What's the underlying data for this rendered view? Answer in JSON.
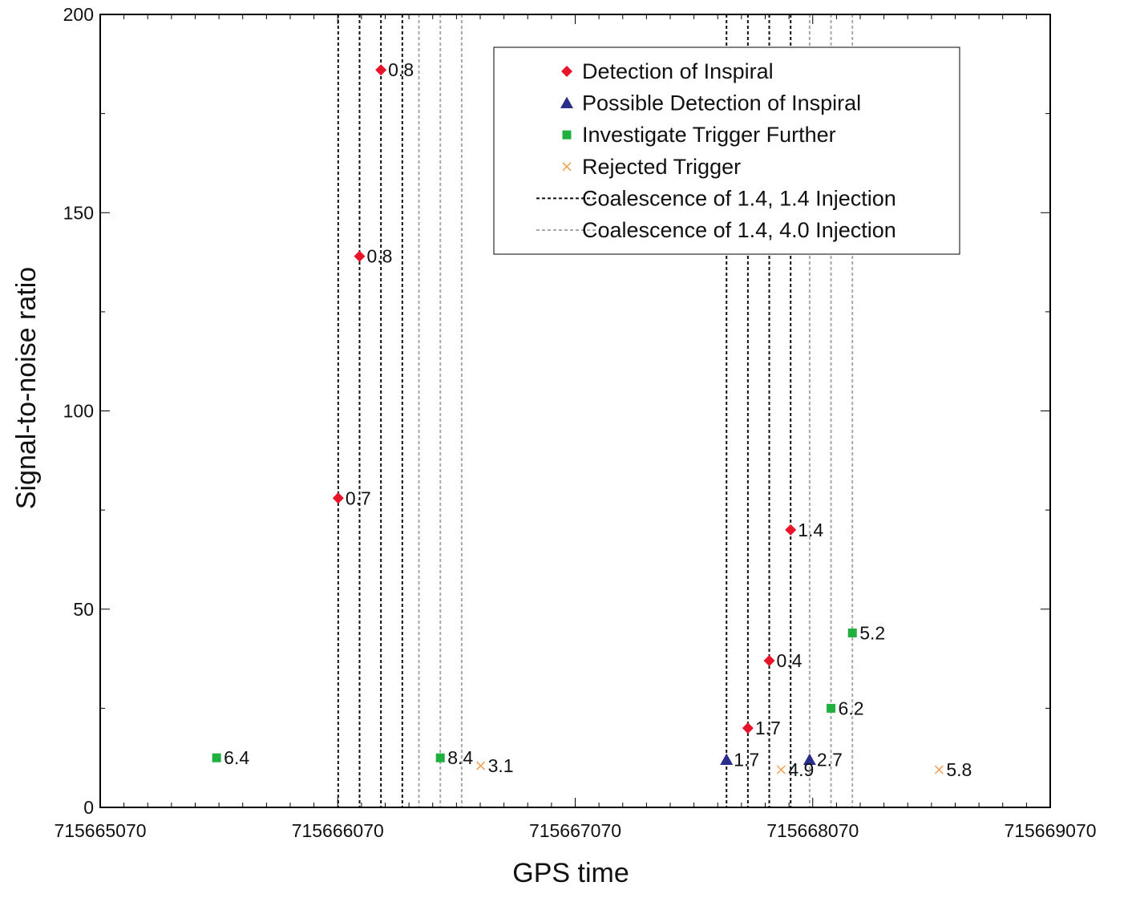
{
  "chart_data": {
    "type": "scatter",
    "title": "",
    "xlabel": "GPS time",
    "ylabel": "Signal-to-noise ratio",
    "xlim": [
      715665070,
      715669070
    ],
    "ylim": [
      0,
      200
    ],
    "grid": false,
    "xticks": [
      715665070,
      715666070,
      715667070,
      715668070,
      715669070
    ],
    "xtick_labels": [
      "715665070",
      "715666070",
      "715667070",
      "715668070",
      "715669070"
    ],
    "yticks": [
      0,
      50,
      100,
      150,
      200
    ],
    "ytick_labels": [
      "0",
      "50",
      "100",
      "150",
      "200"
    ],
    "x_minor_step": 100,
    "y_minor_step": 25,
    "legend": {
      "position": "top-right",
      "entries": [
        {
          "label": "Detection of Inspiral",
          "marker": "diamond",
          "color": "#e8142a"
        },
        {
          "label": "Possible Detection of Inspiral",
          "marker": "triangle",
          "color": "#2b2d8c"
        },
        {
          "label": "Investigate Trigger Further",
          "marker": "square",
          "color": "#1fb040"
        },
        {
          "label": "Rejected Trigger",
          "marker": "x",
          "color": "#f0a050"
        },
        {
          "label": "Coalescence of 1.4, 1.4 Injection",
          "marker": "dash",
          "color": "#111111"
        },
        {
          "label": "Coalescence of 1.4, 4.0 Injection",
          "marker": "dash",
          "color": "#a8a8a8"
        }
      ]
    },
    "injection_lines": [
      {
        "name": "Coalescence of 1.4, 1.4 Injection",
        "color": "#111111",
        "x": [
          715666072,
          715666162,
          715666252,
          715666342,
          715667707,
          715667797,
          715667887,
          715667977
        ]
      },
      {
        "name": "Coalescence of 1.4, 4.0 Injection",
        "color": "#a8a8a8",
        "x": [
          715666412,
          715666502,
          715666592,
          715668057,
          715668147,
          715668237
        ]
      }
    ],
    "series": [
      {
        "name": "Detection of Inspiral",
        "marker": "diamond",
        "color": "#e8142a",
        "points": [
          {
            "x": 715666072,
            "y": 78,
            "label": "0.7"
          },
          {
            "x": 715666162,
            "y": 139,
            "label": "0.8"
          },
          {
            "x": 715666252,
            "y": 186,
            "label": "0.8"
          },
          {
            "x": 715667797,
            "y": 20,
            "label": "1.7"
          },
          {
            "x": 715667887,
            "y": 37,
            "label": "0.4"
          },
          {
            "x": 715667977,
            "y": 70,
            "label": "1.4"
          }
        ]
      },
      {
        "name": "Possible Detection of Inspiral",
        "marker": "triangle",
        "color": "#2b2d8c",
        "points": [
          {
            "x": 715667707,
            "y": 12,
            "label": "1.7"
          },
          {
            "x": 715668057,
            "y": 12,
            "label": "2.7"
          }
        ]
      },
      {
        "name": "Investigate Trigger Further",
        "marker": "square",
        "color": "#1fb040",
        "points": [
          {
            "x": 715665560,
            "y": 12.5,
            "label": "6.4"
          },
          {
            "x": 715666502,
            "y": 12.5,
            "label": "8.4"
          },
          {
            "x": 715668147,
            "y": 25,
            "label": "6.2"
          },
          {
            "x": 715668237,
            "y": 44,
            "label": "5.2"
          }
        ]
      },
      {
        "name": "Rejected Trigger",
        "marker": "x",
        "color": "#f0a050",
        "points": [
          {
            "x": 715666672,
            "y": 10.5,
            "label": "3.1"
          },
          {
            "x": 715667937,
            "y": 9.5,
            "label": "4.9"
          },
          {
            "x": 715668602,
            "y": 9.5,
            "label": "5.8"
          }
        ]
      }
    ]
  }
}
